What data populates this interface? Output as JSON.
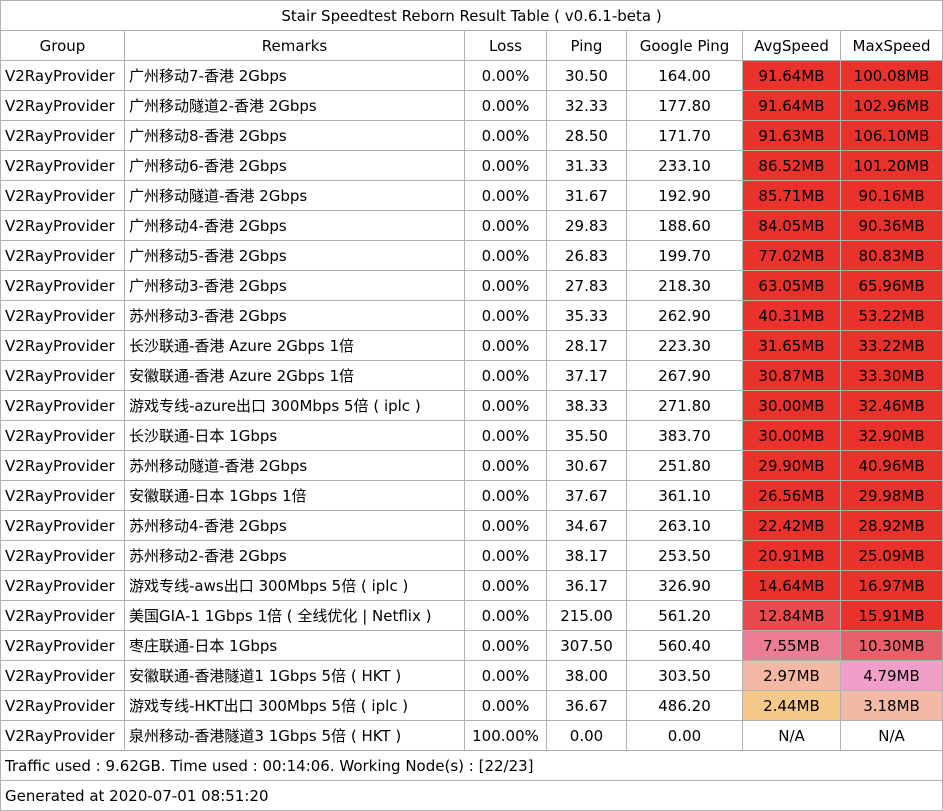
{
  "title": "Stair Speedtest Reborn Result Table ( v0.6.1-beta )",
  "headers": {
    "group": "Group",
    "remarks": "Remarks",
    "loss": "Loss",
    "ping": "Ping",
    "google_ping": "Google Ping",
    "avg_speed": "AvgSpeed",
    "max_speed": "MaxSpeed"
  },
  "rows": [
    {
      "group": "V2RayProvider",
      "remarks": "广州移动7-香港 2Gbps",
      "loss": "0.00%",
      "ping": "30.50",
      "google_ping": "164.00",
      "avg_speed": "91.64MB",
      "max_speed": "100.08MB",
      "avg_color": "#e8322b",
      "max_color": "#e8322b"
    },
    {
      "group": "V2RayProvider",
      "remarks": "广州移动隧道2-香港 2Gbps",
      "loss": "0.00%",
      "ping": "32.33",
      "google_ping": "177.80",
      "avg_speed": "91.64MB",
      "max_speed": "102.96MB",
      "avg_color": "#e8322b",
      "max_color": "#e8322b"
    },
    {
      "group": "V2RayProvider",
      "remarks": "广州移动8-香港 2Gbps",
      "loss": "0.00%",
      "ping": "28.50",
      "google_ping": "171.70",
      "avg_speed": "91.63MB",
      "max_speed": "106.10MB",
      "avg_color": "#e8322b",
      "max_color": "#e8322b"
    },
    {
      "group": "V2RayProvider",
      "remarks": "广州移动6-香港 2Gbps",
      "loss": "0.00%",
      "ping": "31.33",
      "google_ping": "233.10",
      "avg_speed": "86.52MB",
      "max_speed": "101.20MB",
      "avg_color": "#e8322b",
      "max_color": "#e8322b"
    },
    {
      "group": "V2RayProvider",
      "remarks": "广州移动隧道-香港 2Gbps",
      "loss": "0.00%",
      "ping": "31.67",
      "google_ping": "192.90",
      "avg_speed": "85.71MB",
      "max_speed": "90.16MB",
      "avg_color": "#e8322b",
      "max_color": "#e8322b"
    },
    {
      "group": "V2RayProvider",
      "remarks": "广州移动4-香港 2Gbps",
      "loss": "0.00%",
      "ping": "29.83",
      "google_ping": "188.60",
      "avg_speed": "84.05MB",
      "max_speed": "90.36MB",
      "avg_color": "#e8322b",
      "max_color": "#e8322b"
    },
    {
      "group": "V2RayProvider",
      "remarks": "广州移动5-香港 2Gbps",
      "loss": "0.00%",
      "ping": "26.83",
      "google_ping": "199.70",
      "avg_speed": "77.02MB",
      "max_speed": "80.83MB",
      "avg_color": "#e8322b",
      "max_color": "#e8322b"
    },
    {
      "group": "V2RayProvider",
      "remarks": "广州移动3-香港 2Gbps",
      "loss": "0.00%",
      "ping": "27.83",
      "google_ping": "218.30",
      "avg_speed": "63.05MB",
      "max_speed": "65.96MB",
      "avg_color": "#e8322b",
      "max_color": "#e8322b"
    },
    {
      "group": "V2RayProvider",
      "remarks": "苏州移动3-香港 2Gbps",
      "loss": "0.00%",
      "ping": "35.33",
      "google_ping": "262.90",
      "avg_speed": "40.31MB",
      "max_speed": "53.22MB",
      "avg_color": "#e8322b",
      "max_color": "#e8322b"
    },
    {
      "group": "V2RayProvider",
      "remarks": "长沙联通-香港 Azure 2Gbps  1倍",
      "loss": "0.00%",
      "ping": "28.17",
      "google_ping": "223.30",
      "avg_speed": "31.65MB",
      "max_speed": "33.22MB",
      "avg_color": "#e8322b",
      "max_color": "#e8322b"
    },
    {
      "group": "V2RayProvider",
      "remarks": "安徽联通-香港 Azure 2Gbps  1倍",
      "loss": "0.00%",
      "ping": "37.17",
      "google_ping": "267.90",
      "avg_speed": "30.87MB",
      "max_speed": "33.30MB",
      "avg_color": "#e8322b",
      "max_color": "#e8322b"
    },
    {
      "group": "V2RayProvider",
      "remarks": "游戏专线-azure出口 300Mbps 5倍 ( iplc )",
      "loss": "0.00%",
      "ping": "38.33",
      "google_ping": "271.80",
      "avg_speed": "30.00MB",
      "max_speed": "32.46MB",
      "avg_color": "#e8322b",
      "max_color": "#e8322b"
    },
    {
      "group": "V2RayProvider",
      "remarks": "长沙联通-日本 1Gbps",
      "loss": "0.00%",
      "ping": "35.50",
      "google_ping": "383.70",
      "avg_speed": "30.00MB",
      "max_speed": "32.90MB",
      "avg_color": "#e8322b",
      "max_color": "#e8322b"
    },
    {
      "group": "V2RayProvider",
      "remarks": "苏州移动隧道-香港 2Gbps",
      "loss": "0.00%",
      "ping": "30.67",
      "google_ping": "251.80",
      "avg_speed": "29.90MB",
      "max_speed": "40.96MB",
      "avg_color": "#e8322b",
      "max_color": "#e8322b"
    },
    {
      "group": "V2RayProvider",
      "remarks": "安徽联通-日本 1Gbps 1倍",
      "loss": "0.00%",
      "ping": "37.67",
      "google_ping": "361.10",
      "avg_speed": "26.56MB",
      "max_speed": "29.98MB",
      "avg_color": "#e8322b",
      "max_color": "#e8322b"
    },
    {
      "group": "V2RayProvider",
      "remarks": "苏州移动4-香港 2Gbps",
      "loss": "0.00%",
      "ping": "34.67",
      "google_ping": "263.10",
      "avg_speed": "22.42MB",
      "max_speed": "28.92MB",
      "avg_color": "#e8322b",
      "max_color": "#e8322b"
    },
    {
      "group": "V2RayProvider",
      "remarks": "苏州移动2-香港 2Gbps",
      "loss": "0.00%",
      "ping": "38.17",
      "google_ping": "253.50",
      "avg_speed": "20.91MB",
      "max_speed": "25.09MB",
      "avg_color": "#e8322b",
      "max_color": "#e8322b"
    },
    {
      "group": "V2RayProvider",
      "remarks": "游戏专线-aws出口 300Mbps 5倍 ( iplc )",
      "loss": "0.00%",
      "ping": "36.17",
      "google_ping": "326.90",
      "avg_speed": "14.64MB",
      "max_speed": "16.97MB",
      "avg_color": "#e8322b",
      "max_color": "#e8322b"
    },
    {
      "group": "V2RayProvider",
      "remarks": "美国GIA-1 1Gbps 1倍 ( 全线优化 | Netflix )",
      "loss": "0.00%",
      "ping": "215.00",
      "google_ping": "561.20",
      "avg_speed": "12.84MB",
      "max_speed": "15.91MB",
      "avg_color": "#e84a4e",
      "max_color": "#e8322b"
    },
    {
      "group": "V2RayProvider",
      "remarks": "枣庄联通-日本 1Gbps",
      "loss": "0.00%",
      "ping": "307.50",
      "google_ping": "560.40",
      "avg_speed": "7.55MB",
      "max_speed": "10.30MB",
      "avg_color": "#ec7c94",
      "max_color": "#e8606a"
    },
    {
      "group": "V2RayProvider",
      "remarks": "安徽联通-香港隧道1 1Gbps 5倍 ( HKT )",
      "loss": "0.00%",
      "ping": "38.00",
      "google_ping": "303.50",
      "avg_speed": "2.97MB",
      "max_speed": "4.79MB",
      "avg_color": "#f4b9a4",
      "max_color": "#f0a0c8"
    },
    {
      "group": "V2RayProvider",
      "remarks": "游戏专线-HKT出口 300Mbps 5倍 ( iplc )",
      "loss": "0.00%",
      "ping": "36.67",
      "google_ping": "486.20",
      "avg_speed": "2.44MB",
      "max_speed": "3.18MB",
      "avg_color": "#f6c88a",
      "max_color": "#f4b9a4"
    },
    {
      "group": "V2RayProvider",
      "remarks": "泉州移动-香港隧道3 1Gbps 5倍 ( HKT )",
      "loss": "100.00%",
      "ping": "0.00",
      "google_ping": "0.00",
      "avg_speed": "N/A",
      "max_speed": "N/A",
      "avg_color": "#ffffff",
      "max_color": "#ffffff"
    }
  ],
  "footer": {
    "traffic": "Traffic used : 9.62GB. Time used : 00:14:06. Working Node(s) : [22/23]",
    "generated": "Generated at 2020-07-01 08:51:20"
  }
}
